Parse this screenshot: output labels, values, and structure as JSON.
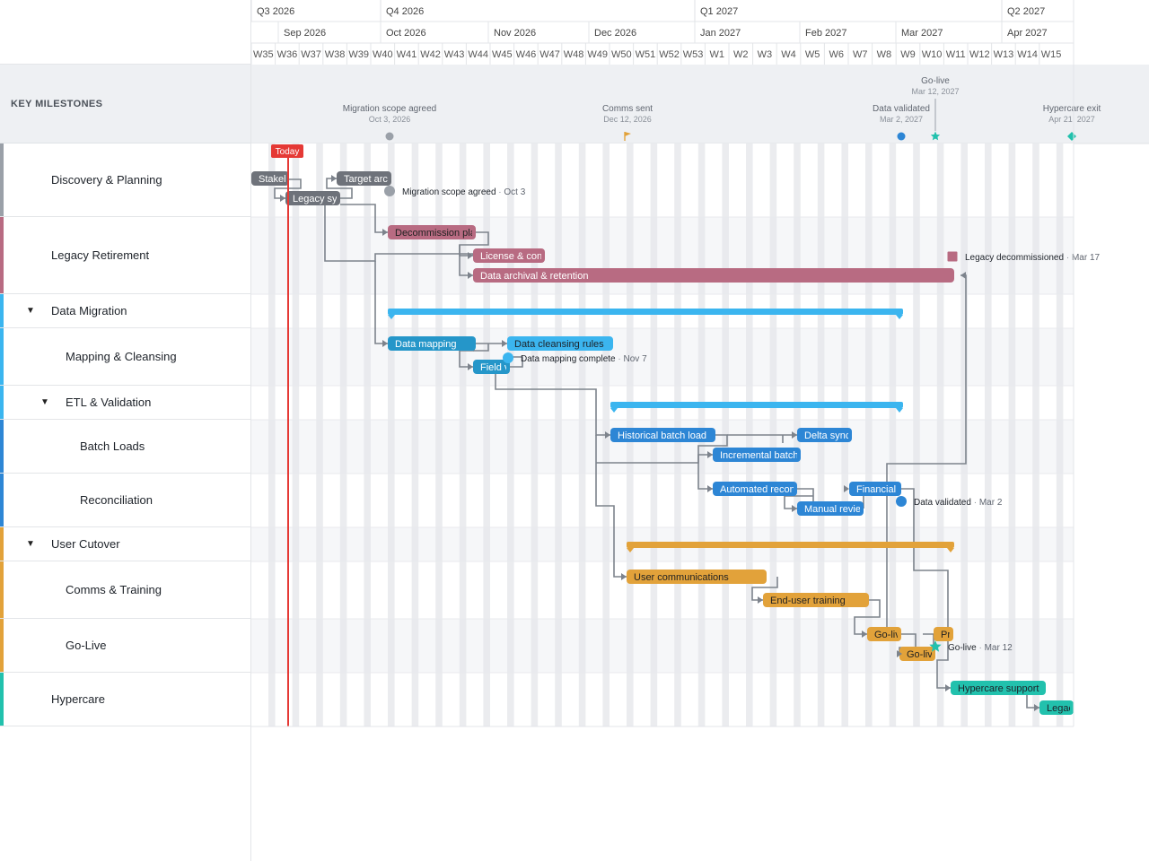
{
  "sidebar": {
    "milestones_label": "KEY MILESTONES",
    "rows": [
      {
        "label": "Discovery & Planning",
        "color": "#9aa0a8",
        "indent": 0,
        "group": false
      },
      {
        "label": "Legacy Retirement",
        "color": "#b86b82",
        "indent": 0,
        "group": false
      },
      {
        "label": "Data Migration",
        "color": "#3bb5ef",
        "indent": 0,
        "group": true
      },
      {
        "label": "Mapping & Cleansing",
        "color": "#3bb5ef",
        "indent": 1,
        "group": false
      },
      {
        "label": "ETL & Validation",
        "color": "#3bb5ef",
        "indent": 1,
        "group": true
      },
      {
        "label": "Batch Loads",
        "color": "#2d86d5",
        "indent": 2,
        "group": false
      },
      {
        "label": "Reconciliation",
        "color": "#2d86d5",
        "indent": 2,
        "group": false
      },
      {
        "label": "User Cutover",
        "color": "#e2a23a",
        "indent": 0,
        "group": true
      },
      {
        "label": "Comms & Training",
        "color": "#e2a23a",
        "indent": 1,
        "group": false
      },
      {
        "label": "Go-Live",
        "color": "#e2a23a",
        "indent": 1,
        "group": false
      },
      {
        "label": "Hypercare",
        "color": "#22c1ad",
        "indent": 0,
        "group": false
      }
    ]
  },
  "timeline": {
    "quarters": [
      "Q3 2026",
      "Q4 2026",
      "Q1 2027",
      "Q2 2027"
    ],
    "months": [
      "Sep 2026",
      "Oct 2026",
      "Nov 2026",
      "Dec 2026",
      "Jan 2027",
      "Feb 2027",
      "Mar 2027",
      "Apr 2027"
    ],
    "weeks": [
      "W35",
      "W36",
      "W37",
      "W38",
      "W39",
      "W40",
      "W41",
      "W42",
      "W43",
      "W44",
      "W45",
      "W46",
      "W47",
      "W48",
      "W49",
      "W50",
      "W51",
      "W52",
      "W53",
      "W1",
      "W2",
      "W3",
      "W4",
      "W5",
      "W6",
      "W7",
      "W8",
      "W9",
      "W10",
      "W11",
      "W12",
      "W13",
      "W14",
      "W15"
    ],
    "today_label": "Today"
  },
  "key_milestones": [
    {
      "name": "Migration scope agreed",
      "date": "Oct 3, 2026",
      "shape": "circle",
      "color": "#9aa0a8"
    },
    {
      "name": "Comms sent",
      "date": "Dec 12, 2026",
      "shape": "flag",
      "color": "#e2a23a"
    },
    {
      "name": "Data validated",
      "date": "Mar 2, 2027",
      "shape": "circle",
      "color": "#2d86d5"
    },
    {
      "name": "Go-live",
      "date": "Mar 12, 2027",
      "shape": "star",
      "color": "#22c1ad"
    },
    {
      "name": "Hypercare exit",
      "date": "Apr 21, 2027",
      "shape": "diamond",
      "color": "#22c1ad"
    }
  ],
  "tasks": [
    {
      "label": "Stakeholder interviews",
      "color": "#6e727a",
      "text": "#ffffff"
    },
    {
      "label": "Target architecture",
      "color": "#6e727a",
      "text": "#ffffff"
    },
    {
      "label": "Legacy system audit",
      "color": "#6e727a",
      "text": "#ffffff"
    },
    {
      "label": "Decommission plan",
      "color": "#b86b82",
      "text": "#222222"
    },
    {
      "label": "License & contracts",
      "color": "#b86b82",
      "text": "#ffffff"
    },
    {
      "label": "Data archival & retention",
      "color": "#b86b82",
      "text": "#ffffff"
    },
    {
      "label": "Data mapping",
      "color": "#2596c9",
      "text": "#ffffff"
    },
    {
      "label": "Data cleansing rules",
      "color": "#3bb5ef",
      "text": "#1d2229"
    },
    {
      "label": "Field validation",
      "color": "#2596c9",
      "text": "#ffffff"
    },
    {
      "label": "Historical batch load",
      "color": "#2d86d5",
      "text": "#ffffff"
    },
    {
      "label": "Delta sync",
      "color": "#2d86d5",
      "text": "#ffffff"
    },
    {
      "label": "Incremental batches",
      "color": "#2d86d5",
      "text": "#ffffff"
    },
    {
      "label": "Automated reconciliation",
      "color": "#2d86d5",
      "text": "#ffffff"
    },
    {
      "label": "Financial checks",
      "color": "#2d86d5",
      "text": "#ffffff"
    },
    {
      "label": "Manual review",
      "color": "#2d86d5",
      "text": "#ffffff"
    },
    {
      "label": "User communications",
      "color": "#e2a23a",
      "text": "#222222"
    },
    {
      "label": "End-user training",
      "color": "#e2a23a",
      "text": "#222222"
    },
    {
      "label": "Go-live prep",
      "color": "#e2a23a",
      "text": "#222222"
    },
    {
      "label": "Production switch",
      "color": "#e2a23a",
      "text": "#222222"
    },
    {
      "label": "Go-live cutover",
      "color": "#e2a23a",
      "text": "#222222"
    },
    {
      "label": "Hypercare support",
      "color": "#22c1ad",
      "text": "#1d2229"
    },
    {
      "label": "Legacy shutdown",
      "color": "#22c1ad",
      "text": "#1d2229"
    }
  ],
  "summaries": [
    {
      "name": "Data Migration",
      "color": "#3bb5ef"
    },
    {
      "name": "ETL & Validation",
      "color": "#3bb5ef"
    },
    {
      "name": "User Cutover",
      "color": "#e2a23a"
    }
  ],
  "row_milestones": [
    {
      "name": "Migration scope agreed",
      "date": "Oct 3",
      "shape": "circle",
      "color": "#9aa0a8"
    },
    {
      "name": "Legacy decommissioned",
      "date": "Mar 17",
      "shape": "square",
      "color": "#b86b82"
    },
    {
      "name": "Data mapping complete",
      "date": "Nov 7",
      "shape": "circle",
      "color": "#3bb5ef"
    },
    {
      "name": "Data validated",
      "date": "Mar 2",
      "shape": "circle",
      "color": "#2d86d5"
    },
    {
      "name": "Go-live",
      "date": "Mar 12",
      "shape": "star",
      "color": "#22c1ad"
    }
  ]
}
